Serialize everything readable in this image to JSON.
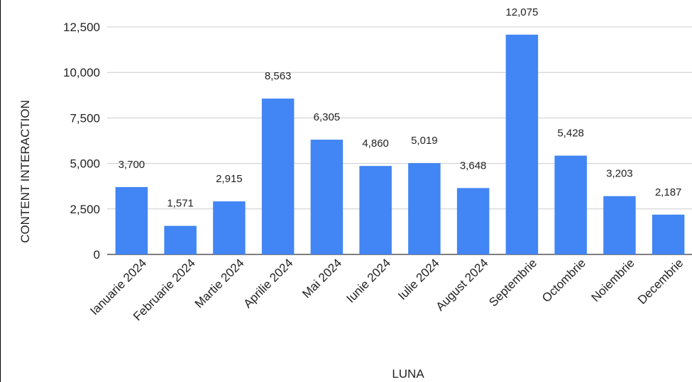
{
  "chart_data": {
    "type": "bar",
    "xlabel": "LUNA",
    "ylabel": "CONTENT INTERACTION",
    "ylim": [
      0,
      12500
    ],
    "yticks": [
      0,
      2500,
      5000,
      7500,
      10000,
      12500
    ],
    "ytick_labels": [
      "0",
      "2,500",
      "5,000",
      "7,500",
      "10,000",
      "12,500"
    ],
    "grid": true,
    "categories": [
      "Ianuarie 2024",
      "Februarie 2024",
      "Martie 2024",
      "Aprilie 2024",
      "Mai 2024",
      "Iunie 2024",
      "Iulie 2024",
      "August 2024",
      "Septembrie",
      "Octombrie",
      "Noiembrie",
      "Decembrie"
    ],
    "values": [
      3700,
      1571,
      2915,
      8563,
      6305,
      4860,
      5019,
      3648,
      12075,
      5428,
      3203,
      2187
    ],
    "value_labels": [
      "3,700",
      "1,571",
      "2,915",
      "8,563",
      "6,305",
      "4,860",
      "5,019",
      "3,648",
      "12,075",
      "5,428",
      "3,203",
      "2,187"
    ],
    "bar_color": "#4285f4",
    "grid_color": "#cccccc"
  }
}
